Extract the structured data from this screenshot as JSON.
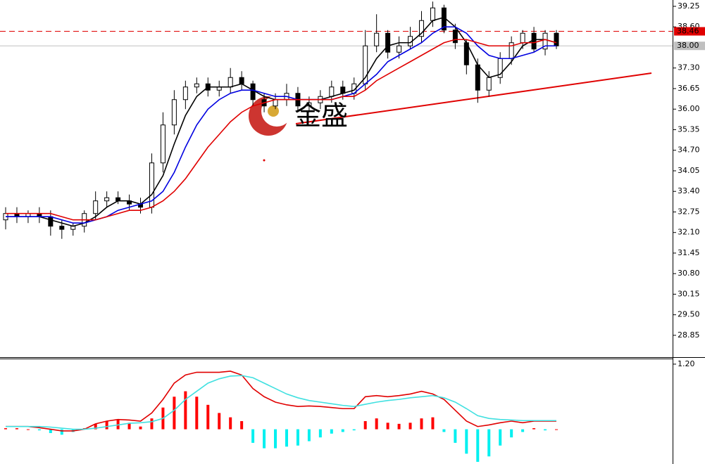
{
  "chart_data": [
    {
      "type": "candlestick",
      "watermark": "金盛",
      "ylim": [
        28.16,
        39.45
      ],
      "yticks": [
        39.25,
        {
          "value": 38.6,
          "label": "38.60"
        },
        {
          "value": 37.3,
          "label": "37.30"
        },
        36.65,
        {
          "value": 36,
          "label": "36.00"
        },
        35.35,
        {
          "value": 34.7,
          "label": "34.70"
        },
        34.05,
        {
          "value": 33.4,
          "label": "33.40"
        },
        32.75,
        {
          "value": 32.1,
          "label": "32.10"
        },
        31.45,
        {
          "value": 30.8,
          "label": "30.80"
        },
        30.15,
        {
          "value": 29.5,
          "label": "29.50"
        },
        28.85
      ],
      "price_lines": [
        {
          "value": 38.46,
          "label": "38.46",
          "color": "#e00000",
          "dashed": true
        },
        {
          "value": 38,
          "label": "38.00",
          "color": "#c0c0c0",
          "dashed": false
        }
      ],
      "up_color": "#ffffff",
      "down_color": "#000000",
      "open": [
        32.5,
        32.7,
        32.6,
        32.7,
        32.6,
        32.3,
        32.2,
        32.3,
        32.7,
        33.1,
        33.2,
        33.1,
        33.0,
        32.9,
        34.3,
        35.5,
        36.3,
        36.7,
        36.8,
        36.6,
        36.7,
        37.0,
        36.8,
        36.3,
        36.1,
        36.3,
        36.5,
        36.1,
        36.2,
        36.4,
        36.7,
        36.5,
        36.8,
        38.0,
        38.4,
        37.8,
        38.0,
        38.3,
        38.8,
        39.2,
        38.5,
        38.1,
        37.4,
        36.6,
        37.0,
        37.6,
        38.1,
        38.4,
        37.9,
        38.4
      ],
      "high": [
        32.9,
        32.9,
        32.8,
        32.9,
        32.8,
        32.5,
        32.4,
        32.8,
        33.4,
        33.4,
        33.4,
        33.3,
        33.2,
        34.6,
        35.9,
        36.6,
        36.9,
        37.0,
        37.0,
        36.9,
        37.3,
        37.2,
        36.9,
        36.5,
        36.5,
        36.8,
        36.7,
        36.4,
        36.6,
        36.9,
        36.9,
        37.0,
        38.5,
        39.0,
        38.5,
        38.3,
        38.6,
        39.1,
        39.4,
        39.3,
        38.7,
        38.2,
        37.6,
        37.2,
        37.8,
        38.3,
        38.5,
        38.6,
        38.5,
        38.5
      ],
      "low": [
        32.2,
        32.4,
        32.4,
        32.4,
        32.0,
        31.9,
        32.0,
        32.1,
        32.5,
        32.9,
        33.0,
        32.8,
        32.7,
        32.7,
        34.0,
        35.2,
        36.0,
        36.5,
        36.4,
        36.4,
        36.5,
        36.6,
        36.1,
        35.9,
        36.0,
        36.1,
        35.9,
        35.9,
        36.0,
        36.2,
        36.3,
        36.3,
        36.6,
        37.8,
        37.6,
        37.6,
        37.9,
        38.1,
        38.6,
        38.4,
        37.9,
        37.1,
        36.2,
        36.4,
        36.8,
        37.4,
        37.9,
        37.8,
        37.7,
        37.9
      ],
      "close": [
        32.7,
        32.6,
        32.7,
        32.6,
        32.3,
        32.2,
        32.3,
        32.7,
        33.1,
        33.2,
        33.1,
        33.0,
        32.9,
        34.3,
        35.5,
        36.3,
        36.7,
        36.8,
        36.6,
        36.7,
        37.0,
        36.8,
        36.3,
        36.1,
        36.3,
        36.5,
        36.1,
        36.2,
        36.4,
        36.7,
        36.5,
        36.8,
        38.0,
        38.4,
        37.8,
        38.0,
        38.3,
        38.8,
        39.2,
        38.5,
        38.1,
        37.4,
        36.6,
        37.0,
        37.6,
        38.1,
        38.4,
        37.9,
        38.4,
        38.0
      ],
      "series": [
        {
          "color": "#000000",
          "values": [
            32.6,
            32.6,
            32.6,
            32.6,
            32.5,
            32.4,
            32.3,
            32.4,
            32.6,
            32.9,
            33.1,
            33.1,
            33.0,
            33.3,
            33.9,
            34.9,
            35.8,
            36.4,
            36.7,
            36.7,
            36.7,
            36.8,
            36.6,
            36.4,
            36.3,
            36.3,
            36.3,
            36.3,
            36.3,
            36.4,
            36.5,
            36.6,
            37.0,
            37.6,
            38.0,
            38.1,
            38.1,
            38.4,
            38.8,
            38.9,
            38.6,
            38.1,
            37.4,
            37.0,
            37.1,
            37.5,
            38.0,
            38.2,
            38.2,
            38.1
          ]
        },
        {
          "color": "#0000e0",
          "values": [
            32.6,
            32.6,
            32.6,
            32.6,
            32.6,
            32.5,
            32.4,
            32.4,
            32.5,
            32.6,
            32.8,
            32.9,
            33.0,
            33.1,
            33.4,
            34.0,
            34.8,
            35.5,
            36.0,
            36.3,
            36.5,
            36.6,
            36.6,
            36.5,
            36.4,
            36.4,
            36.3,
            36.3,
            36.3,
            36.3,
            36.4,
            36.5,
            36.8,
            37.1,
            37.5,
            37.7,
            37.9,
            38.1,
            38.4,
            38.6,
            38.6,
            38.4,
            38.0,
            37.7,
            37.6,
            37.6,
            37.7,
            37.8,
            38.0,
            38.0
          ]
        },
        {
          "color": "#e00000",
          "values": [
            32.7,
            32.7,
            32.7,
            32.7,
            32.7,
            32.6,
            32.5,
            32.5,
            32.5,
            32.6,
            32.7,
            32.8,
            32.8,
            32.9,
            33.1,
            33.4,
            33.8,
            34.3,
            34.8,
            35.2,
            35.6,
            35.9,
            36.1,
            36.2,
            36.3,
            36.3,
            36.3,
            36.3,
            36.3,
            36.3,
            36.4,
            36.4,
            36.6,
            36.9,
            37.1,
            37.3,
            37.5,
            37.7,
            37.9,
            38.1,
            38.2,
            38.2,
            38.1,
            38.0,
            38.0,
            38.0,
            38.1,
            38.1,
            38.2,
            38.1
          ]
        }
      ]
    },
    {
      "type": "macd",
      "ylim": [
        -0.64,
        1.29
      ],
      "yticks": [
        {
          "value": 1.2,
          "label": "1.20"
        }
      ],
      "up_color": "#ff0000",
      "down_color": "#00f0f0",
      "values": [
        0.02,
        0.02,
        0.0,
        -0.02,
        -0.07,
        -0.1,
        -0.05,
        0.02,
        0.1,
        0.15,
        0.17,
        0.12,
        0.05,
        0.2,
        0.4,
        0.6,
        0.7,
        0.6,
        0.45,
        0.3,
        0.22,
        0.15,
        -0.25,
        -0.35,
        -0.35,
        -0.32,
        -0.3,
        -0.22,
        -0.15,
        -0.08,
        -0.05,
        -0.02,
        0.15,
        0.2,
        0.12,
        0.1,
        0.12,
        0.2,
        0.22,
        -0.05,
        -0.25,
        -0.45,
        -0.6,
        -0.5,
        -0.3,
        -0.15,
        -0.05,
        0.02,
        -0.02,
        0.0
      ],
      "series": [
        {
          "color": "#e00000",
          "values": [
            0.05,
            0.05,
            0.05,
            0.03,
            0.0,
            -0.03,
            -0.03,
            0.0,
            0.1,
            0.15,
            0.18,
            0.17,
            0.15,
            0.3,
            0.55,
            0.85,
            1.0,
            1.05,
            1.05,
            1.05,
            1.07,
            1.0,
            0.75,
            0.6,
            0.5,
            0.45,
            0.42,
            0.43,
            0.42,
            0.4,
            0.38,
            0.38,
            0.6,
            0.62,
            0.6,
            0.62,
            0.65,
            0.7,
            0.65,
            0.55,
            0.35,
            0.15,
            0.05,
            0.08,
            0.12,
            0.15,
            0.12,
            0.15,
            0.15,
            0.15
          ]
        },
        {
          "color": "#40e0e0",
          "values": [
            0.05,
            0.05,
            0.05,
            0.05,
            0.04,
            0.02,
            0.0,
            0.0,
            0.02,
            0.05,
            0.08,
            0.11,
            0.12,
            0.14,
            0.2,
            0.35,
            0.55,
            0.7,
            0.85,
            0.93,
            0.98,
            0.99,
            0.95,
            0.85,
            0.75,
            0.65,
            0.58,
            0.53,
            0.5,
            0.47,
            0.44,
            0.42,
            0.46,
            0.5,
            0.53,
            0.55,
            0.58,
            0.6,
            0.62,
            0.58,
            0.5,
            0.38,
            0.25,
            0.2,
            0.18,
            0.17,
            0.16,
            0.16,
            0.16,
            0.16
          ]
        }
      ]
    }
  ]
}
